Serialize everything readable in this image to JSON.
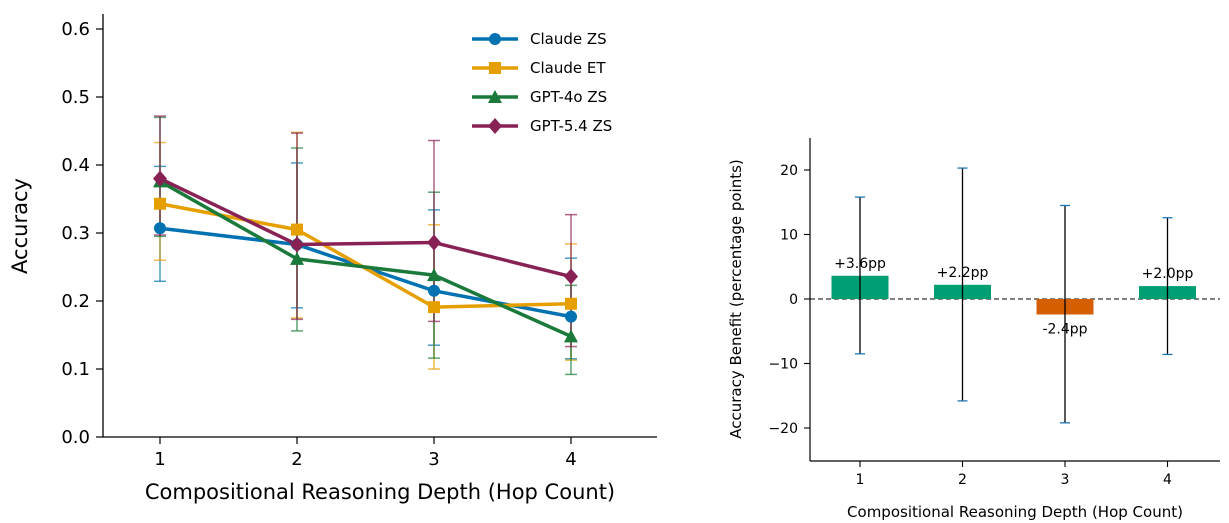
{
  "chart_data": [
    {
      "type": "line",
      "xlabel": "Compositional Reasoning Depth (Hop Count)",
      "ylabel": "Accuracy",
      "x": [
        1,
        2,
        3,
        4
      ],
      "xticks": [
        "1",
        "2",
        "3",
        "4"
      ],
      "ylim": [
        0,
        0.62
      ],
      "yticks": [
        "0.0",
        "0.1",
        "0.2",
        "0.3",
        "0.4",
        "0.5",
        "0.6"
      ],
      "grid": false,
      "legend_position": "top-right",
      "series": [
        {
          "name": "Claude ZS",
          "color": "#0072B2",
          "marker": "circle",
          "values": [
            0.307,
            0.283,
            0.215,
            0.177
          ],
          "err_low": [
            0.229,
            0.19,
            0.135,
            0.115
          ],
          "err_high": [
            0.398,
            0.403,
            0.334,
            0.263
          ]
        },
        {
          "name": "Claude ET",
          "color": "#E69F00",
          "marker": "square",
          "values": [
            0.343,
            0.305,
            0.191,
            0.196
          ],
          "err_low": [
            0.26,
            0.175,
            0.1,
            0.113
          ],
          "err_high": [
            0.433,
            0.448,
            0.312,
            0.284
          ]
        },
        {
          "name": "GPT-4o ZS",
          "color": "#1b7a3b",
          "marker": "triangle",
          "values": [
            0.376,
            0.262,
            0.238,
            0.148
          ],
          "err_low": [
            0.295,
            0.156,
            0.116,
            0.092
          ],
          "err_high": [
            0.47,
            0.425,
            0.36,
            0.223
          ]
        },
        {
          "name": "GPT-5.4 ZS",
          "color": "#882255",
          "marker": "diamond",
          "values": [
            0.38,
            0.283,
            0.286,
            0.236
          ],
          "err_low": [
            0.297,
            0.173,
            0.17,
            0.133
          ],
          "err_high": [
            0.472,
            0.447,
            0.436,
            0.327
          ]
        }
      ]
    },
    {
      "type": "bar",
      "xlabel": "Compositional Reasoning Depth (Hop Count)",
      "ylabel": "Accuracy Benefit (percentage points)",
      "categories": [
        "1",
        "2",
        "3",
        "4"
      ],
      "values": [
        3.6,
        2.2,
        -2.4,
        2.0
      ],
      "err_low": [
        -8.5,
        -15.8,
        -19.2,
        -8.6
      ],
      "err_high": [
        15.8,
        20.3,
        14.5,
        12.6
      ],
      "data_labels": [
        "+3.6pp",
        "+2.2pp",
        "-2.4pp",
        "+2.0pp"
      ],
      "ylim": [
        -25,
        25
      ],
      "yticks": [
        "−20",
        "−10",
        "0",
        "10",
        "20"
      ],
      "ytick_values": [
        -20,
        -10,
        0,
        10,
        20
      ],
      "positive_color": "#009E73",
      "negative_color": "#D55E00",
      "zero_line": "dashed"
    }
  ]
}
